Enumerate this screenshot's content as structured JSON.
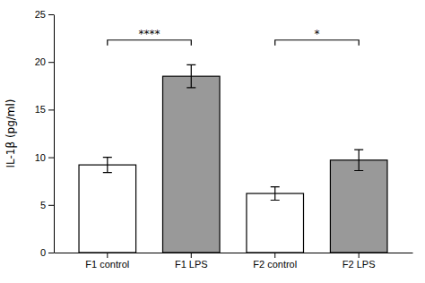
{
  "chart_data": {
    "type": "bar",
    "categories": [
      "F1 control",
      "F1 LPS",
      "F2 control",
      "F2 LPS"
    ],
    "values": [
      9.2,
      18.5,
      6.2,
      9.7
    ],
    "errors": [
      0.8,
      1.2,
      0.7,
      1.1
    ],
    "colors": [
      "#ffffff",
      "#999999",
      "#ffffff",
      "#999999"
    ],
    "y_label": "IL-1β (pg/ml)",
    "ylim": [
      0,
      25
    ],
    "yticks": [
      0,
      5,
      10,
      15,
      20,
      25
    ],
    "annotations": [
      {
        "label": "****",
        "from": "F1 control",
        "to": "F1 LPS",
        "y": 22.3
      },
      {
        "label": "*",
        "from": "F2 control",
        "to": "F2 LPS",
        "y": 22.3
      }
    ]
  }
}
